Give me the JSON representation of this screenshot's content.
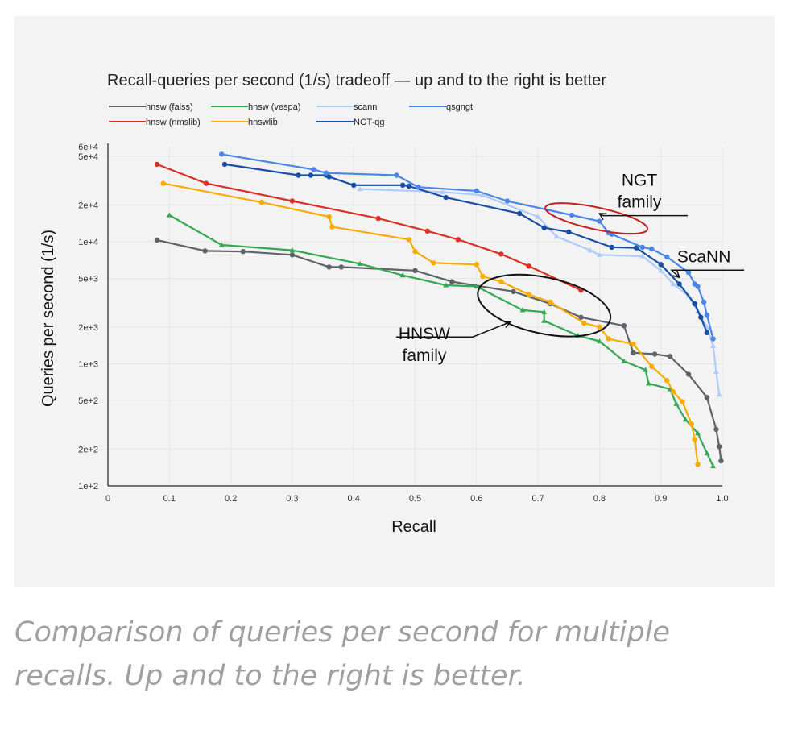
{
  "caption": "Comparison of queries per second for multiple recalls. Up and to the right is better.",
  "chart_data": {
    "type": "line",
    "title": "Recall-queries per second (1/s) tradeoff — up and to the right is better",
    "xlabel": "Recall",
    "ylabel": "Queries per second (1/s)",
    "xlim": [
      0,
      1.0
    ],
    "ylim": [
      100,
      60000
    ],
    "yscale": "log",
    "grid": true,
    "legend_position": "top-left",
    "x_ticks": [
      {
        "value": 0,
        "label": "0"
      },
      {
        "value": 0.1,
        "label": "0.1"
      },
      {
        "value": 0.2,
        "label": "0.2"
      },
      {
        "value": 0.3,
        "label": "0.3"
      },
      {
        "value": 0.4,
        "label": "0.4"
      },
      {
        "value": 0.5,
        "label": "0.5"
      },
      {
        "value": 0.6,
        "label": "0.6"
      },
      {
        "value": 0.7,
        "label": "0.7"
      },
      {
        "value": 0.8,
        "label": "0.8"
      },
      {
        "value": 0.9,
        "label": "0.9"
      },
      {
        "value": 1.0,
        "label": "1.0"
      }
    ],
    "y_ticks": [
      {
        "value": 60000,
        "label": "6e+4"
      },
      {
        "value": 50000,
        "label": "5e+4"
      },
      {
        "value": 20000,
        "label": "2e+4"
      },
      {
        "value": 10000,
        "label": "1e+4"
      },
      {
        "value": 5000,
        "label": "5e+3"
      },
      {
        "value": 2000,
        "label": "2e+3"
      },
      {
        "value": 1000,
        "label": "1e+3"
      },
      {
        "value": 500,
        "label": "5e+2"
      },
      {
        "value": 200,
        "label": "2e+2"
      },
      {
        "value": 100,
        "label": "1e+2"
      }
    ],
    "series": [
      {
        "name": "hnsw (faiss)",
        "color": "#5f6368",
        "marker": "circle",
        "points": [
          [
            0.08,
            10300
          ],
          [
            0.158,
            8400
          ],
          [
            0.22,
            8300
          ],
          [
            0.3,
            7800
          ],
          [
            0.36,
            6200
          ],
          [
            0.38,
            6200
          ],
          [
            0.5,
            5800
          ],
          [
            0.56,
            4700
          ],
          [
            0.66,
            3900
          ],
          [
            0.72,
            3100
          ],
          [
            0.77,
            2400
          ],
          [
            0.84,
            2050
          ],
          [
            0.855,
            1230
          ],
          [
            0.89,
            1200
          ],
          [
            0.915,
            1150
          ],
          [
            0.945,
            820
          ],
          [
            0.975,
            530
          ],
          [
            0.99,
            290
          ],
          [
            0.995,
            210
          ],
          [
            0.998,
            160
          ]
        ]
      },
      {
        "name": "hnsw (nmslib)",
        "color": "#d93025",
        "marker": "circle",
        "points": [
          [
            0.08,
            43000
          ],
          [
            0.16,
            30000
          ],
          [
            0.3,
            21500
          ],
          [
            0.44,
            15500
          ],
          [
            0.52,
            12200
          ],
          [
            0.57,
            10400
          ],
          [
            0.64,
            7900
          ],
          [
            0.685,
            6300
          ],
          [
            0.77,
            4000
          ]
        ]
      },
      {
        "name": "hnsw (vespa)",
        "color": "#34a853",
        "marker": "triangle",
        "points": [
          [
            0.1,
            16500
          ],
          [
            0.185,
            9400
          ],
          [
            0.3,
            8500
          ],
          [
            0.41,
            6600
          ],
          [
            0.48,
            5300
          ],
          [
            0.55,
            4400
          ],
          [
            0.6,
            4300
          ],
          [
            0.675,
            2750
          ],
          [
            0.71,
            2650
          ],
          [
            0.71,
            2250
          ],
          [
            0.765,
            1700
          ],
          [
            0.8,
            1530
          ],
          [
            0.84,
            1050
          ],
          [
            0.875,
            890
          ],
          [
            0.88,
            690
          ],
          [
            0.915,
            620
          ],
          [
            0.925,
            470
          ],
          [
            0.94,
            350
          ],
          [
            0.96,
            270
          ],
          [
            0.975,
            185
          ],
          [
            0.985,
            145
          ]
        ]
      },
      {
        "name": "hnswlib",
        "color": "#f9ab00",
        "marker": "circle",
        "points": [
          [
            0.09,
            30000
          ],
          [
            0.25,
            21000
          ],
          [
            0.36,
            16000
          ],
          [
            0.365,
            13200
          ],
          [
            0.49,
            10400
          ],
          [
            0.5,
            8300
          ],
          [
            0.53,
            6700
          ],
          [
            0.6,
            6500
          ],
          [
            0.61,
            5200
          ],
          [
            0.64,
            4700
          ],
          [
            0.685,
            3700
          ],
          [
            0.72,
            3200
          ],
          [
            0.775,
            2150
          ],
          [
            0.8,
            2000
          ],
          [
            0.815,
            1600
          ],
          [
            0.855,
            1450
          ],
          [
            0.885,
            950
          ],
          [
            0.91,
            730
          ],
          [
            0.92,
            590
          ],
          [
            0.935,
            490
          ],
          [
            0.95,
            320
          ],
          [
            0.955,
            240
          ],
          [
            0.96,
            150
          ]
        ]
      },
      {
        "name": "scann",
        "color": "#aecbfa",
        "marker": "triangle",
        "points": [
          [
            0.41,
            27000
          ],
          [
            0.545,
            25500
          ],
          [
            0.61,
            24000
          ],
          [
            0.7,
            16000
          ],
          [
            0.73,
            11000
          ],
          [
            0.785,
            8500
          ],
          [
            0.8,
            7800
          ],
          [
            0.87,
            7600
          ],
          [
            0.9,
            5800
          ],
          [
            0.92,
            4500
          ],
          [
            0.945,
            3600
          ],
          [
            0.96,
            2700
          ],
          [
            0.975,
            2000
          ],
          [
            0.985,
            1400
          ],
          [
            0.99,
            860
          ],
          [
            0.995,
            560
          ]
        ]
      },
      {
        "name": "NGT-qg",
        "color": "#174ea6",
        "marker": "circle",
        "points": [
          [
            0.19,
            43000
          ],
          [
            0.31,
            35000
          ],
          [
            0.33,
            35000
          ],
          [
            0.355,
            35000
          ],
          [
            0.36,
            34000
          ],
          [
            0.4,
            29000
          ],
          [
            0.48,
            29000
          ],
          [
            0.49,
            28500
          ],
          [
            0.55,
            23000
          ],
          [
            0.67,
            17000
          ],
          [
            0.71,
            13000
          ],
          [
            0.75,
            12000
          ],
          [
            0.82,
            9000
          ],
          [
            0.86,
            8900
          ],
          [
            0.9,
            6500
          ],
          [
            0.93,
            4500
          ],
          [
            0.955,
            3100
          ],
          [
            0.965,
            2400
          ],
          [
            0.975,
            1800
          ]
        ]
      },
      {
        "name": "qsgngt",
        "color": "#4a86e8",
        "marker": "circle",
        "points": [
          [
            0.185,
            52000
          ],
          [
            0.335,
            39000
          ],
          [
            0.355,
            36500
          ],
          [
            0.47,
            35000
          ],
          [
            0.505,
            28000
          ],
          [
            0.6,
            26000
          ],
          [
            0.65,
            21500
          ],
          [
            0.755,
            16500
          ],
          [
            0.8,
            14700
          ],
          [
            0.815,
            11800
          ],
          [
            0.82,
            11500
          ],
          [
            0.87,
            9000
          ],
          [
            0.885,
            8700
          ],
          [
            0.91,
            7500
          ],
          [
            0.945,
            5600
          ],
          [
            0.955,
            4500
          ],
          [
            0.96,
            4300
          ],
          [
            0.97,
            3200
          ],
          [
            0.975,
            2500
          ],
          [
            0.985,
            1600
          ]
        ]
      }
    ],
    "annotations": [
      {
        "text_lines": [
          "NGT",
          "family"
        ],
        "label_xy": [
          0.865,
          19000
        ],
        "arrow_to": [
          0.8,
          17000
        ],
        "ring": {
          "cx": 0.795,
          "cy": 15500,
          "rx": 0.085,
          "ry_decades": 0.09
        },
        "ring_color": "#c5221f"
      },
      {
        "text_lines": [
          "ScaNN"
        ],
        "label_xy": [
          0.97,
          6800
        ],
        "arrow_to": [
          0.93,
          5100
        ]
      },
      {
        "text_lines": [
          "HNSW",
          "family"
        ],
        "label_xy": [
          0.515,
          1050
        ],
        "arrow_to": [
          0.655,
          2200
        ],
        "ring": {
          "cx": 0.71,
          "cy": 3000,
          "rx": 0.11,
          "ry_decades": 0.23
        },
        "ring_color": "#111111"
      }
    ]
  }
}
